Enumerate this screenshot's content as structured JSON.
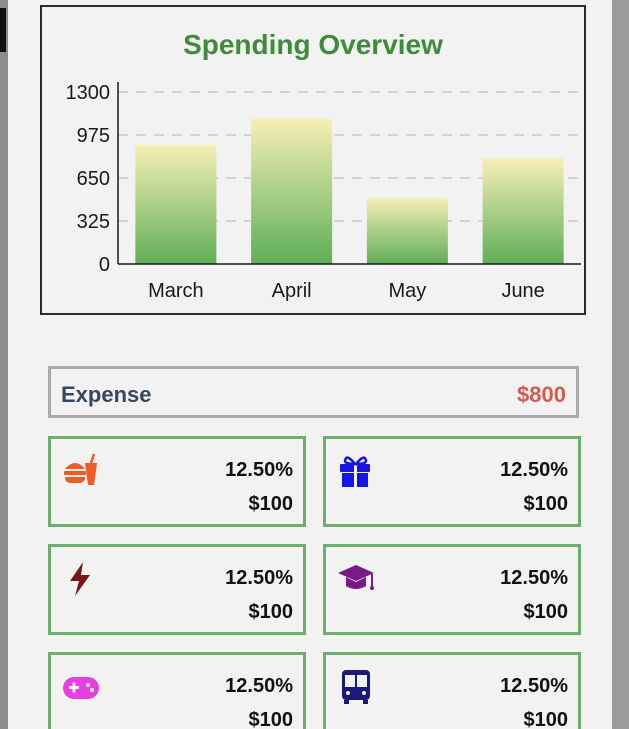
{
  "chart_data": {
    "type": "bar",
    "title": "Spending Overview",
    "categories": [
      "March",
      "April",
      "May",
      "June"
    ],
    "values": [
      900,
      1100,
      500,
      800
    ],
    "yticks": [
      "0",
      "325",
      "650",
      "975",
      "1300"
    ],
    "ylim": [
      0,
      1300
    ],
    "grid": true,
    "colors": {
      "bar_top": "#f7f0b6",
      "bar_bottom": "#5fae58",
      "grid": "#c8c8c8"
    }
  },
  "expense": {
    "label": "Expense",
    "amount": "$800",
    "amount_color": "#d9584a"
  },
  "categories": [
    {
      "icon": "burger-soda-icon",
      "color": "#ef5b24",
      "percent": "12.50%",
      "amount": "$100"
    },
    {
      "icon": "gift-icon",
      "color": "#1515e6",
      "percent": "12.50%",
      "amount": "$100"
    },
    {
      "icon": "bolt-icon",
      "color": "#7a1616",
      "percent": "12.50%",
      "amount": "$100"
    },
    {
      "icon": "graduation-cap-icon",
      "color": "#7a1a86",
      "percent": "12.50%",
      "amount": "$100"
    },
    {
      "icon": "gamepad-icon",
      "color": "#e63fe0",
      "percent": "12.50%",
      "amount": "$100"
    },
    {
      "icon": "bus-icon",
      "color": "#1a1a7a",
      "percent": "12.50%",
      "amount": "$100"
    }
  ]
}
